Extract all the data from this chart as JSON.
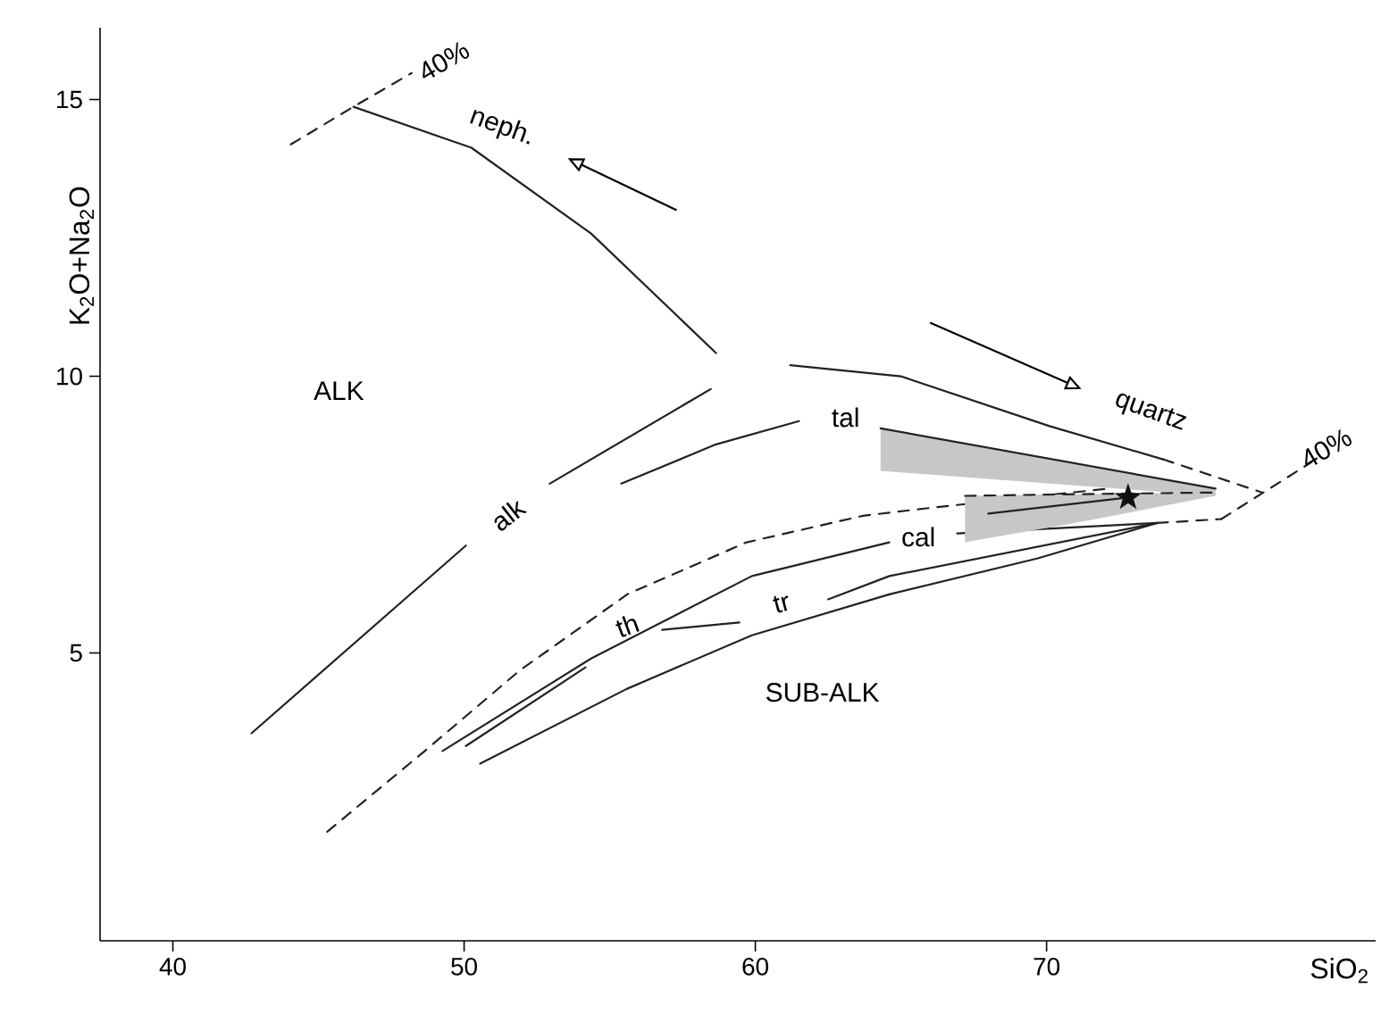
{
  "chart_data": {
    "type": "line",
    "xlabel": "SiO$_{2}$",
    "ylabel": "K$_{2}$O+Na$_{2}$O",
    "xlim": [
      37.5,
      81.3
    ],
    "ylim": [
      -0.2,
      16.3
    ],
    "xticks": [
      40,
      50,
      60,
      70
    ],
    "yticks": [
      5,
      10,
      15
    ],
    "grid": false,
    "series": [
      {
        "color": "#222222",
        "line_style": "solid",
        "x": [
          46.2,
          50.25,
          54.36,
          58.65
        ],
        "values": [
          14.87,
          14.13,
          12.58,
          10.42
        ]
      },
      {
        "color": "#222222",
        "line_style": "dashed",
        "x": [
          44.05,
          46.2,
          48.2
        ],
        "values": [
          14.19,
          14.87,
          15.48
        ]
      },
      {
        "color": "#222222",
        "line_style": "solid",
        "x": [
          42.7,
          50.06,
          51.5,
          52.94,
          58.47
        ],
        "values": [
          3.55,
          6.94,
          null,
          8.06,
          9.77
        ]
      },
      {
        "color": "#222222",
        "line_style": "solid",
        "x": [
          55.4,
          58.65,
          61.5
        ],
        "values": [
          8.06,
          8.77,
          9.19
        ]
      },
      {
        "color": "#222222",
        "line_style": "solid",
        "x": [
          61.2,
          65.0,
          70.1,
          74.0
        ],
        "values": [
          10.2,
          10.0,
          9.1,
          8.5
        ]
      },
      {
        "color": "#222222",
        "line_style": "dashed",
        "x": [
          74.0,
          77.4
        ],
        "values": [
          8.5,
          7.9
        ]
      },
      {
        "color": "#222222",
        "line_style": "dashed",
        "x": [
          76.0,
          79.1
        ],
        "values": [
          7.42,
          8.45
        ]
      },
      {
        "color": "#222222",
        "line_style": "dashed",
        "x": [
          45.3,
          48.65,
          51.9,
          55.6,
          59.7,
          63.7,
          65.8,
          72.1
        ],
        "values": [
          1.77,
          3.23,
          4.68,
          6.06,
          7.0,
          7.48,
          7.61,
          7.97
        ]
      },
      {
        "color": "#222222",
        "line_style": "solid",
        "x": [
          49.26,
          54.36,
          59.88,
          64.6,
          65.8,
          66.93,
          73.8
        ],
        "values": [
          3.23,
          4.9,
          6.39,
          7.0,
          null,
          7.16,
          7.35
        ]
      },
      {
        "color": "#222222",
        "line_style": "solid",
        "x": [
          50.06,
          54.17,
          55.5,
          56.8,
          59.45,
          61.0,
          62.5,
          64.6,
          73.8
        ],
        "values": [
          3.32,
          4.74,
          null,
          5.42,
          5.55,
          null,
          5.97,
          6.39,
          7.35
        ]
      },
      {
        "color": "#222222",
        "line_style": "solid",
        "x": [
          50.55,
          55.58,
          59.88,
          64.6,
          69.7,
          73.8
        ],
        "values": [
          3.0,
          4.35,
          5.32,
          6.06,
          6.71,
          7.35
        ]
      },
      {
        "color": "#222222",
        "line_style": "dashed",
        "x": [
          73.8,
          76.0
        ],
        "values": [
          7.35,
          7.42
        ]
      },
      {
        "color": "#222222",
        "line_style": "solid",
        "x": [
          64.3,
          75.8
        ],
        "values": [
          9.06,
          7.97
        ],
        "lower": [
          8.29,
          7.84
        ],
        "upper": [
          9.06,
          7.97
        ]
      },
      {
        "color": "#222222",
        "line_style": "dashed",
        "x": [
          67.2,
          71.0,
          75.8
        ],
        "values": [
          7.84,
          7.87,
          7.9
        ],
        "lower": [
          7.0,
          7.35,
          7.84
        ],
        "upper": [
          7.84,
          7.87,
          7.9
        ]
      },
      {
        "color": "#222222",
        "line_style": "solid",
        "x": [
          68.0,
          72.8
        ],
        "values": [
          7.52,
          7.81
        ]
      },
      {
        "type": "scatter",
        "color": "#111111",
        "marker": "star",
        "x": [
          72.8
        ],
        "values": [
          7.81
        ]
      }
    ],
    "annotations": [
      "ALK",
      "SUB-ALK",
      "alk",
      "tal",
      "cal",
      "th",
      "tr",
      "neph.",
      "quartz",
      "40%",
      "40%"
    ]
  }
}
